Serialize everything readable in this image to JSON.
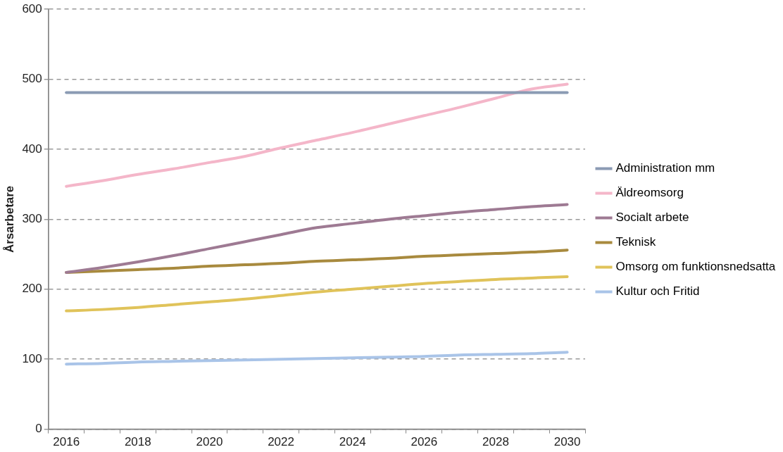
{
  "chart_data": {
    "type": "line",
    "ylabel": "Årsarbetare",
    "categories": [
      "2016",
      null,
      "2018",
      null,
      "2020",
      null,
      "2022",
      null,
      "2024",
      null,
      "2026",
      null,
      "2028",
      null,
      "2030"
    ],
    "ylim": [
      0,
      600
    ],
    "yticks": [
      0,
      100,
      200,
      300,
      400,
      500,
      600
    ],
    "grid": "y",
    "legend": "right",
    "marker": "none",
    "line_style": "solid",
    "series": [
      {
        "name": "Administration mm",
        "color": "#8b9bb4",
        "values": [
          481,
          481,
          481,
          481,
          481,
          481,
          481,
          481,
          481,
          481,
          481,
          481,
          481,
          481,
          481
        ]
      },
      {
        "name": "Äldreomsorg",
        "color": "#f4b6c9",
        "values": [
          347,
          355,
          364,
          372,
          381,
          390,
          402,
          413,
          424,
          436,
          448,
          460,
          473,
          486,
          493
        ]
      },
      {
        "name": "Socialt arbete",
        "color": "#9e7a93",
        "values": [
          224,
          231,
          239,
          248,
          258,
          268,
          278,
          288,
          294,
          300,
          305,
          310,
          314,
          318,
          321
        ]
      },
      {
        "name": "Teknisk",
        "color": "#a88a3e",
        "values": [
          224,
          226,
          228,
          230,
          233,
          235,
          237,
          240,
          242,
          244,
          247,
          249,
          251,
          253,
          256
        ]
      },
      {
        "name": "Omsorg om funktionsnedsatta",
        "color": "#e0c35a",
        "values": [
          169,
          171,
          174,
          178,
          182,
          186,
          191,
          196,
          200,
          204,
          208,
          211,
          214,
          216,
          218
        ]
      },
      {
        "name": "Kultur och Fritid",
        "color": "#a9c4e8",
        "values": [
          93,
          94,
          96,
          97,
          98,
          99,
          100,
          101,
          102,
          103,
          104,
          106,
          107,
          108,
          110
        ]
      }
    ]
  }
}
